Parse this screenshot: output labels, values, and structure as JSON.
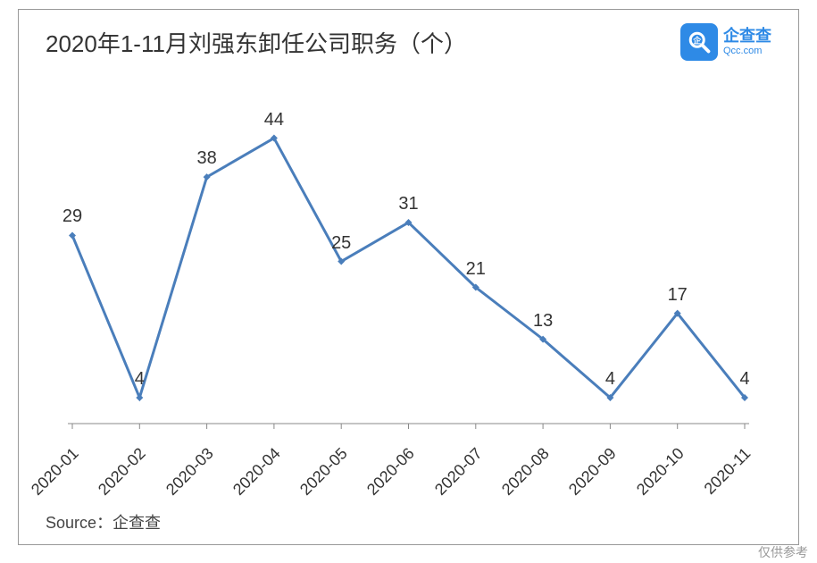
{
  "chart": {
    "type": "line",
    "title": "2020年1-11月刘强东卸任公司职务（个）",
    "title_fontsize": 26,
    "title_color": "#333333",
    "categories": [
      "2020-01",
      "2020-02",
      "2020-03",
      "2020-04",
      "2020-05",
      "2020-06",
      "2020-07",
      "2020-08",
      "2020-09",
      "2020-10",
      "2020-11"
    ],
    "values": [
      29,
      4,
      38,
      44,
      25,
      31,
      21,
      13,
      4,
      17,
      4
    ],
    "line_color": "#4a7ebb",
    "line_width": 3,
    "marker_style": "diamond",
    "marker_size": 8,
    "marker_color": "#4a7ebb",
    "data_label_fontsize": 20,
    "data_label_color": "#333333",
    "axis_label_fontsize": 18,
    "axis_label_rotation": -45,
    "axis_label_color": "#333333",
    "axis_line_color": "#888888",
    "background_color": "#ffffff",
    "border_color": "#999999",
    "ylim": [
      0,
      50
    ],
    "tick_length": 6
  },
  "logo": {
    "brand_text": "企查查",
    "brand_sub": "Qcc.com",
    "icon_bg": "#2e8ae6",
    "text_color": "#2e8ae6"
  },
  "source": {
    "label": "Source：",
    "value": "企查查",
    "fontsize": 18,
    "color": "#444444"
  },
  "footer": "仅供参考"
}
